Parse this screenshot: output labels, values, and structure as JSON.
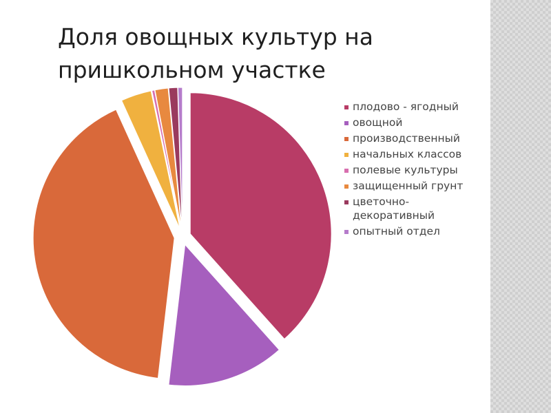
{
  "title": "Доля овощных культур на пришкольном участке",
  "colors": {
    "background": "#ffffff",
    "side_strip": "#dedede"
  },
  "chart_data": {
    "type": "pie",
    "variant": "exploded",
    "title": "Доля овощных культур на пришкольном участке",
    "legend_position": "right",
    "slices": [
      {
        "label": "плодово - ягодный",
        "value": 38.5,
        "color": "#B83C66"
      },
      {
        "label": "овощной",
        "value": 13.5,
        "color": "#A65FBE"
      },
      {
        "label": "производственный",
        "value": 41.5,
        "color": "#D9693A"
      },
      {
        "label": "начальных классов",
        "value": 3.5,
        "color": "#F0B13F"
      },
      {
        "label": "полевые культуры",
        "value": 0.3,
        "color": "#D86FAF"
      },
      {
        "label": "защищенный грунт",
        "value": 1.5,
        "color": "#E8893F"
      },
      {
        "label": "цветочно-\nдекоративный",
        "value": 1.0,
        "color": "#9A3A5E"
      },
      {
        "label": "опытный отдел",
        "value": 0.5,
        "color": "#B57CCB"
      }
    ]
  }
}
